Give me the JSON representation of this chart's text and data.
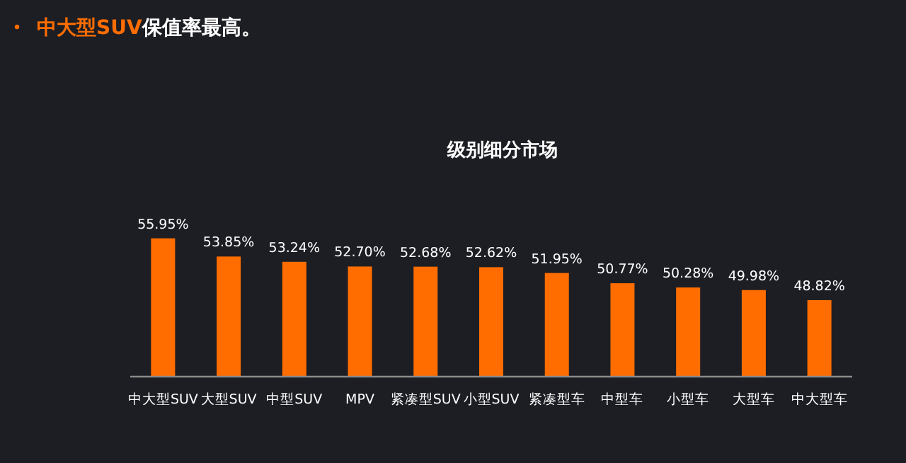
{
  "chart_data": {
    "type": "bar",
    "title": "级别细分市场",
    "annotations": [
      "**中大型SUV**保值率最高。"
    ],
    "categories": [
      "中大型SUV",
      "大型SUV",
      "中型SUV",
      "MPV",
      "紧凑型SUV",
      "小型SUV",
      "紧凑型车",
      "中型车",
      "小型车",
      "大型车",
      "中大型车"
    ],
    "values": [
      55.95,
      53.85,
      53.24,
      52.7,
      52.68,
      52.62,
      51.95,
      50.77,
      50.28,
      49.98,
      48.82
    ],
    "value_labels": [
      "55.95%",
      "53.85%",
      "53.24%",
      "52.70%",
      "52.68%",
      "52.62%",
      "51.95%",
      "50.77%",
      "50.28%",
      "49.98%",
      "48.82%"
    ],
    "color": "#ff6d00",
    "ylim": [
      40,
      56
    ]
  }
}
